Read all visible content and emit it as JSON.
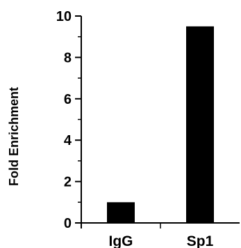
{
  "chart_data": {
    "type": "bar",
    "categories": [
      "IgG",
      "Sp1"
    ],
    "values": [
      1.0,
      9.5
    ],
    "ylabel": "Fold Enrichment",
    "xlabel": "",
    "ylim": [
      0,
      10
    ],
    "y_major_ticks": [
      0,
      2,
      4,
      6,
      8,
      10
    ],
    "y_minor_ticks": [
      1,
      3,
      5,
      7,
      9
    ],
    "bar_color": "#000000",
    "grid": false,
    "legend": "none"
  }
}
